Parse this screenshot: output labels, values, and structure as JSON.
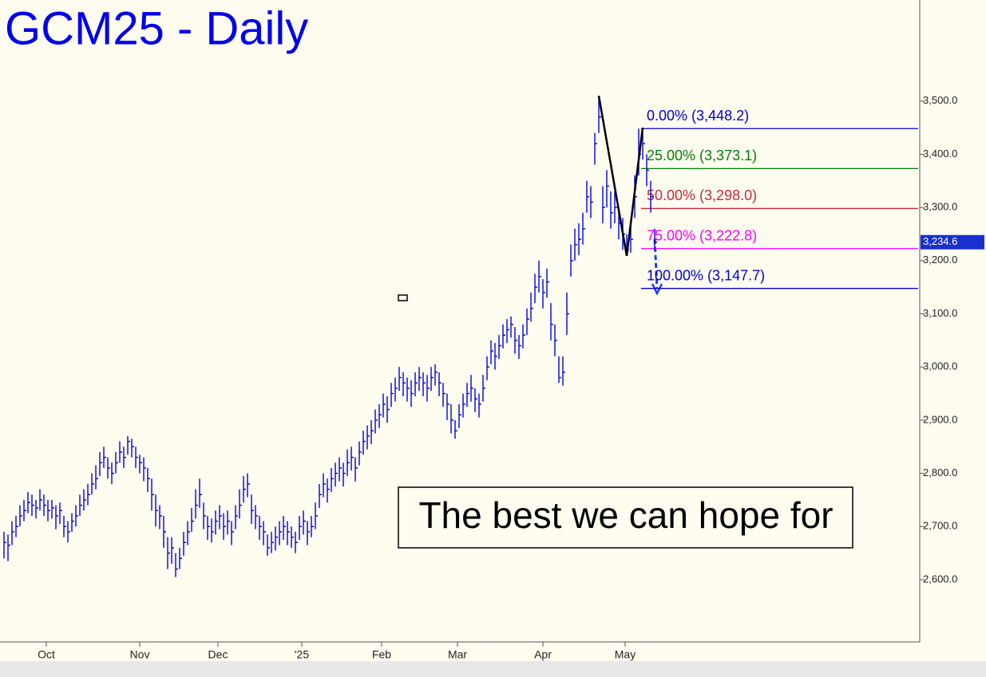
{
  "chart_data": {
    "type": "ohlc",
    "title": "GCM25 - Daily",
    "color": "#0000dd",
    "xlim": [
      -1,
      229.4
    ],
    "ylim": [
      2483,
      3690
    ],
    "xticks": [
      {
        "value": 10.6,
        "label": "Oct"
      },
      {
        "value": 34,
        "label": "Nov"
      },
      {
        "value": 53.6,
        "label": "Dec"
      },
      {
        "value": 74.6,
        "label": "'25"
      },
      {
        "value": 94.6,
        "label": "Feb"
      },
      {
        "value": 113.6,
        "label": "Mar"
      },
      {
        "value": 135,
        "label": "Apr"
      },
      {
        "value": 155.6,
        "label": "May"
      }
    ],
    "yticks": [
      {
        "value": 2600,
        "label": "2,600.0"
      },
      {
        "value": 2700,
        "label": "2,700.0"
      },
      {
        "value": 2800,
        "label": "2,800.0"
      },
      {
        "value": 2900,
        "label": "2,900.0"
      },
      {
        "value": 3000,
        "label": "3,000.0"
      },
      {
        "value": 3100,
        "label": "3,100.0"
      },
      {
        "value": 3200,
        "label": "3,200.0"
      },
      {
        "value": 3300,
        "label": "3,300.0"
      },
      {
        "value": 3400,
        "label": "3,400.0"
      },
      {
        "value": 3500,
        "label": "3,500.0"
      }
    ],
    "high": [
      2690,
      2685,
      2710,
      2720,
      2740,
      2750,
      2765,
      2760,
      2750,
      2770,
      2760,
      2750,
      2750,
      2740,
      2745,
      2720,
      2710,
      2725,
      2740,
      2760,
      2770,
      2780,
      2800,
      2815,
      2840,
      2850,
      2830,
      2820,
      2840,
      2860,
      2850,
      2870,
      2865,
      2850,
      2835,
      2830,
      2810,
      2790,
      2760,
      2740,
      2720,
      2680,
      2680,
      2650,
      2660,
      2690,
      2710,
      2735,
      2770,
      2790,
      2745,
      2720,
      2715,
      2730,
      2740,
      2725,
      2730,
      2710,
      2740,
      2770,
      2795,
      2800,
      2760,
      2740,
      2720,
      2710,
      2685,
      2690,
      2700,
      2710,
      2720,
      2710,
      2700,
      2690,
      2720,
      2730,
      2710,
      2720,
      2745,
      2780,
      2800,
      2790,
      2810,
      2820,
      2830,
      2820,
      2845,
      2850,
      2830,
      2860,
      2880,
      2890,
      2900,
      2920,
      2930,
      2950,
      2945,
      2970,
      2980,
      3000,
      2990,
      2980,
      2975,
      2990,
      3000,
      2990,
      2985,
      3000,
      3005,
      2990,
      2970,
      2950,
      2930,
      2900,
      2930,
      2950,
      2970,
      2985,
      2960,
      2950,
      2985,
      3020,
      3050,
      3045,
      3060,
      3080,
      3090,
      3095,
      3075,
      3060,
      3080,
      3110,
      3140,
      3175,
      3200,
      3165,
      3185,
      3120,
      3080,
      3020,
      3020,
      3140,
      3230,
      3260,
      3270,
      3290,
      3350,
      3340,
      3440,
      3509,
      3340,
      3370,
      3330,
      3330,
      3300,
      3280,
      3250,
      3270,
      3360,
      3448,
      3440,
      3400,
      3350,
      3260
    ],
    "low": [
      2640,
      2635,
      2665,
      2680,
      2700,
      2710,
      2725,
      2720,
      2715,
      2730,
      2720,
      2710,
      2715,
      2695,
      2705,
      2680,
      2670,
      2690,
      2700,
      2720,
      2730,
      2740,
      2760,
      2770,
      2795,
      2810,
      2790,
      2780,
      2800,
      2820,
      2810,
      2835,
      2830,
      2810,
      2800,
      2785,
      2765,
      2730,
      2700,
      2695,
      2660,
      2620,
      2630,
      2605,
      2620,
      2645,
      2665,
      2690,
      2715,
      2735,
      2695,
      2675,
      2670,
      2685,
      2695,
      2675,
      2685,
      2665,
      2695,
      2715,
      2745,
      2755,
      2705,
      2695,
      2675,
      2665,
      2645,
      2650,
      2655,
      2665,
      2675,
      2665,
      2660,
      2650,
      2675,
      2685,
      2665,
      2680,
      2695,
      2735,
      2755,
      2745,
      2765,
      2775,
      2785,
      2775,
      2795,
      2805,
      2785,
      2815,
      2835,
      2845,
      2855,
      2875,
      2885,
      2905,
      2895,
      2925,
      2935,
      2955,
      2945,
      2935,
      2925,
      2945,
      2955,
      2945,
      2935,
      2955,
      2965,
      2945,
      2925,
      2900,
      2875,
      2865,
      2885,
      2905,
      2925,
      2935,
      2915,
      2905,
      2935,
      2975,
      3005,
      2995,
      3015,
      3035,
      3045,
      3055,
      3025,
      3015,
      3035,
      3060,
      3085,
      3120,
      3140,
      3110,
      3130,
      3050,
      3020,
      2970,
      2965,
      3060,
      3170,
      3200,
      3210,
      3230,
      3290,
      3280,
      3380,
      3440,
      3270,
      3300,
      3260,
      3270,
      3240,
      3220,
      3209,
      3215,
      3280,
      3360,
      3390,
      3340,
      3290,
      3220
    ],
    "close": [
      2670,
      2665,
      2690,
      2700,
      2720,
      2730,
      2745,
      2740,
      2735,
      2750,
      2740,
      2730,
      2735,
      2720,
      2730,
      2700,
      2690,
      2710,
      2720,
      2740,
      2750,
      2760,
      2780,
      2790,
      2820,
      2830,
      2810,
      2800,
      2820,
      2840,
      2830,
      2860,
      2850,
      2830,
      2820,
      2810,
      2790,
      2760,
      2730,
      2720,
      2690,
      2650,
      2660,
      2620,
      2640,
      2670,
      2690,
      2710,
      2740,
      2760,
      2720,
      2700,
      2690,
      2710,
      2720,
      2700,
      2710,
      2690,
      2720,
      2740,
      2770,
      2780,
      2730,
      2720,
      2700,
      2690,
      2660,
      2670,
      2680,
      2690,
      2700,
      2690,
      2680,
      2670,
      2700,
      2710,
      2690,
      2700,
      2720,
      2760,
      2780,
      2770,
      2790,
      2800,
      2810,
      2800,
      2820,
      2830,
      2810,
      2840,
      2860,
      2870,
      2880,
      2900,
      2910,
      2930,
      2920,
      2950,
      2960,
      2980,
      2970,
      2960,
      2950,
      2970,
      2980,
      2970,
      2960,
      2980,
      2990,
      2970,
      2950,
      2930,
      2900,
      2880,
      2910,
      2930,
      2950,
      2960,
      2940,
      2930,
      2960,
      3000,
      3030,
      3020,
      3040,
      3060,
      3070,
      3080,
      3050,
      3040,
      3060,
      3090,
      3110,
      3150,
      3170,
      3140,
      3160,
      3080,
      3050,
      2980,
      2990,
      3100,
      3200,
      3230,
      3240,
      3260,
      3320,
      3310,
      3420,
      3470,
      3300,
      3340,
      3290,
      3300,
      3270,
      3250,
      3220,
      3240,
      3320,
      3400,
      3420,
      3370,
      3320,
      3235
    ],
    "fib_levels": [
      {
        "value": 3448.2,
        "label": "0.00% (3,448.2)",
        "color": "#0000cc"
      },
      {
        "value": 3373.1,
        "label": "25.00% (3,373.1)",
        "color": "#008000"
      },
      {
        "value": 3298.0,
        "label": "50.00% (3,298.0)",
        "color": "#c8283c"
      },
      {
        "value": 3222.8,
        "label": "75.00% (3,222.8)",
        "color": "#ff00ff"
      },
      {
        "value": 3147.7,
        "label": "100.00% (3,147.7)",
        "color": "#0000cc"
      }
    ],
    "pattern": {
      "x": [
        149,
        156,
        160
      ],
      "y": [
        3510,
        3209,
        3450
      ]
    },
    "last_price": {
      "value": 3234.6,
      "label": "3,234.6"
    },
    "annotation": "The best we can hope for"
  }
}
